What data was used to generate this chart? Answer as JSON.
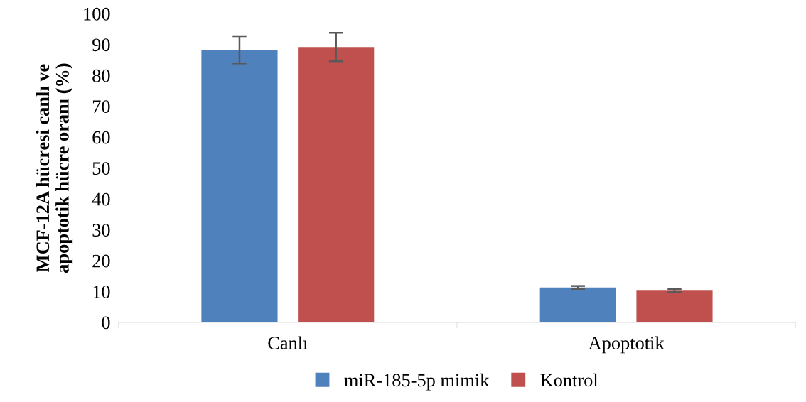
{
  "chart_data": {
    "type": "bar",
    "ylabel": "MCF-12A hücresi canlı ve\napoptotik hücre oranı (%)",
    "categories": [
      "Canlı",
      "Apoptotik"
    ],
    "series": [
      {
        "name": "miR-185-5p mimik",
        "color": "#4f81bd",
        "values": [
          88.3,
          11.3
        ],
        "errors": [
          4.4,
          0.5
        ]
      },
      {
        "name": "Kontrol",
        "color": "#c0504d",
        "values": [
          89.2,
          10.3
        ],
        "errors": [
          4.6,
          0.5
        ]
      }
    ],
    "ylim": [
      0,
      100
    ],
    "yticks": [
      0,
      10,
      20,
      30,
      40,
      50,
      60,
      70,
      80,
      90,
      100
    ],
    "grid": false,
    "legend": "bottom"
  }
}
